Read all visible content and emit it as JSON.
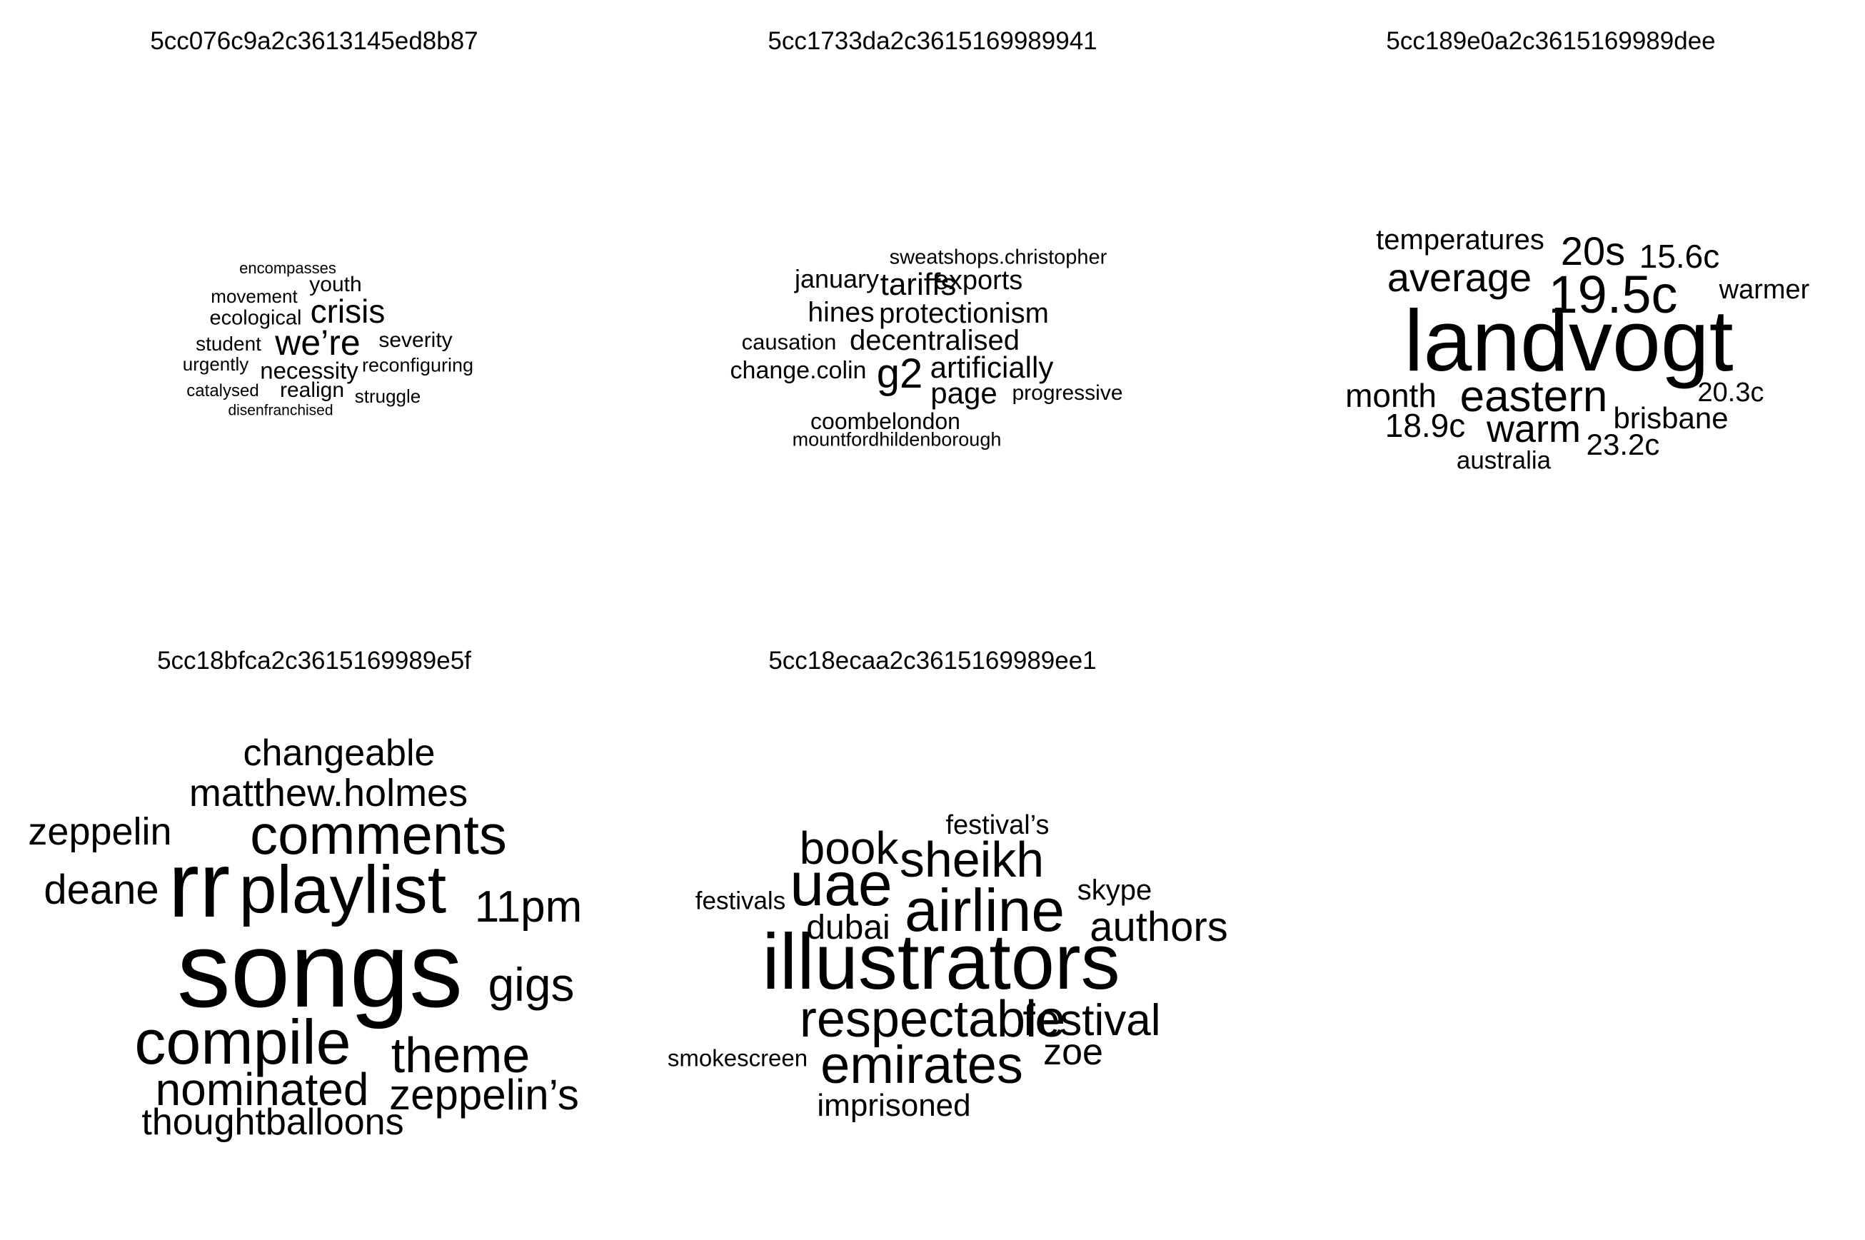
{
  "chart_data": [
    {
      "type": "wordcloud",
      "title": "5cc076c9a2c3613145ed8b87",
      "words": [
        {
          "text": "we’re",
          "weight": 50
        },
        {
          "text": "crisis",
          "weight": 46
        },
        {
          "text": "necessity",
          "weight": 33
        },
        {
          "text": "severity",
          "weight": 30
        },
        {
          "text": "realign",
          "weight": 30
        },
        {
          "text": "youth",
          "weight": 30
        },
        {
          "text": "ecological",
          "weight": 29
        },
        {
          "text": "student",
          "weight": 28
        },
        {
          "text": "reconfiguring",
          "weight": 27
        },
        {
          "text": "movement",
          "weight": 26
        },
        {
          "text": "urgently",
          "weight": 26
        },
        {
          "text": "struggle",
          "weight": 26
        },
        {
          "text": "catalysed",
          "weight": 24
        },
        {
          "text": "encompasses",
          "weight": 22
        },
        {
          "text": "disenfranchised",
          "weight": 21
        }
      ]
    },
    {
      "type": "wordcloud",
      "title": "5cc1733da2c3615169989941",
      "words": [
        {
          "text": "g2",
          "weight": 58
        },
        {
          "text": "tariffs",
          "weight": 44
        },
        {
          "text": "artificially",
          "weight": 42
        },
        {
          "text": "page",
          "weight": 42
        },
        {
          "text": "protectionism",
          "weight": 40
        },
        {
          "text": "decentralised",
          "weight": 40
        },
        {
          "text": "hines",
          "weight": 39
        },
        {
          "text": "exports",
          "weight": 38
        },
        {
          "text": "january",
          "weight": 36
        },
        {
          "text": "change.colin",
          "weight": 34
        },
        {
          "text": "coombelondon",
          "weight": 32
        },
        {
          "text": "causation",
          "weight": 31
        },
        {
          "text": "progressive",
          "weight": 30
        },
        {
          "text": "sweatshops.christopher",
          "weight": 29
        },
        {
          "text": "mountfordhildenborough",
          "weight": 27
        }
      ]
    },
    {
      "type": "wordcloud",
      "title": "5cc189e0a2c3615169989dee",
      "words": [
        {
          "text": "landvogt",
          "weight": 122
        },
        {
          "text": "19.5c",
          "weight": 74
        },
        {
          "text": "eastern",
          "weight": 62
        },
        {
          "text": "average",
          "weight": 56
        },
        {
          "text": "20s",
          "weight": 56
        },
        {
          "text": "warm",
          "weight": 54
        },
        {
          "text": "15.6c",
          "weight": 46
        },
        {
          "text": "month",
          "weight": 46
        },
        {
          "text": "18.9c",
          "weight": 46
        },
        {
          "text": "brisbane",
          "weight": 42
        },
        {
          "text": "23.2c",
          "weight": 42
        },
        {
          "text": "temperatures",
          "weight": 40
        },
        {
          "text": "20.3c",
          "weight": 38
        },
        {
          "text": "warmer",
          "weight": 38
        },
        {
          "text": "australia",
          "weight": 35
        }
      ]
    },
    {
      "type": "wordcloud",
      "title": "5cc18bfca2c3615169989e5f",
      "words": [
        {
          "text": "songs",
          "weight": 150
        },
        {
          "text": "rr",
          "weight": 130
        },
        {
          "text": "playlist",
          "weight": 95
        },
        {
          "text": "compile",
          "weight": 88
        },
        {
          "text": "comments",
          "weight": 78
        },
        {
          "text": "theme",
          "weight": 70
        },
        {
          "text": "gigs",
          "weight": 66
        },
        {
          "text": "nominated",
          "weight": 64
        },
        {
          "text": "11pm",
          "weight": 62
        },
        {
          "text": "zeppelin’s",
          "weight": 60
        },
        {
          "text": "deane",
          "weight": 58
        },
        {
          "text": "matthew.holmes",
          "weight": 54
        },
        {
          "text": "zeppelin",
          "weight": 54
        },
        {
          "text": "changeable",
          "weight": 52
        },
        {
          "text": "thoughtballoons",
          "weight": 52
        }
      ]
    },
    {
      "type": "wordcloud",
      "title": "5cc18ecaa2c3615169989ee1",
      "words": [
        {
          "text": "illustrators",
          "weight": 110
        },
        {
          "text": "uae",
          "weight": 86
        },
        {
          "text": "airline",
          "weight": 84
        },
        {
          "text": "emirates",
          "weight": 74
        },
        {
          "text": "respectable",
          "weight": 72
        },
        {
          "text": "sheikh",
          "weight": 70
        },
        {
          "text": "book",
          "weight": 64
        },
        {
          "text": "festival",
          "weight": 62
        },
        {
          "text": "authors",
          "weight": 58
        },
        {
          "text": "zoe",
          "weight": 52
        },
        {
          "text": "dubai",
          "weight": 48
        },
        {
          "text": "imprisoned",
          "weight": 44
        },
        {
          "text": "skype",
          "weight": 40
        },
        {
          "text": "festival’s",
          "weight": 38
        },
        {
          "text": "festivals",
          "weight": 35
        },
        {
          "text": "smokescreen",
          "weight": 33
        }
      ]
    }
  ]
}
